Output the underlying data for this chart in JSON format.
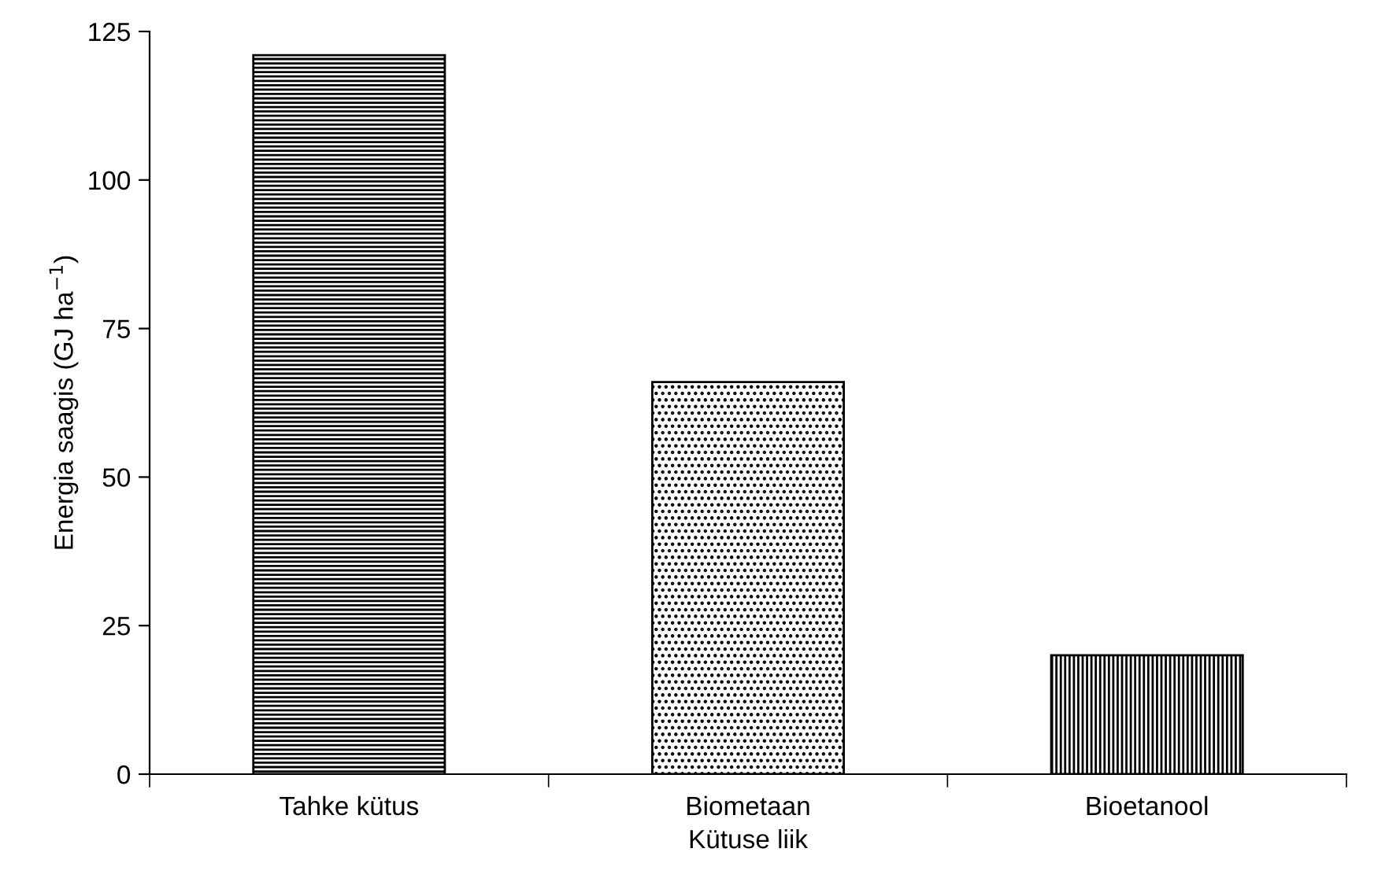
{
  "chart_data": {
    "type": "bar",
    "xlabel": "Kütuse liik",
    "ylabel": "Energia saagis (GJ ha$^{−1}$)",
    "categories": [
      "Tahke kütus",
      "Biometaan",
      "Bioetanool"
    ],
    "values": [
      121,
      66,
      20
    ],
    "ylim": [
      0,
      125
    ],
    "yticks": [
      0,
      25,
      50,
      75,
      100,
      125
    ],
    "grid": false,
    "legend": false
  }
}
